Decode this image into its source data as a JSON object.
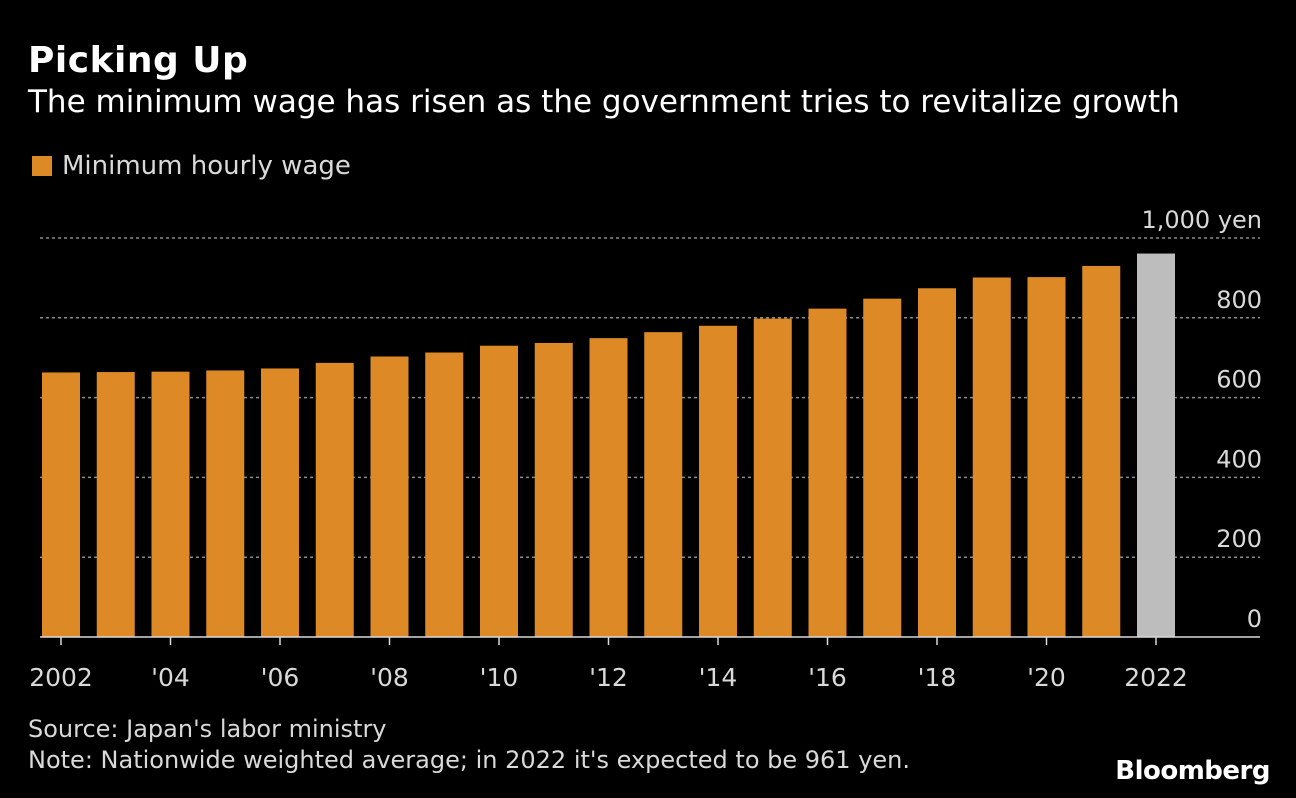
{
  "title": "Picking Up",
  "subtitle": "The minimum wage has risen as the government tries to revitalize growth",
  "legend": {
    "label": "Minimum hourly wage",
    "color": "#DD8A26"
  },
  "colors": {
    "bar": "#DD8A26",
    "bar_projected": "#BDBDBD",
    "grid": "#8C8C8C",
    "axis": "#D9D9D9"
  },
  "footer": {
    "source": "Source: Japan's labor ministry",
    "note": "Note: Nationwide weighted average; in 2022 it's expected to be 961 yen."
  },
  "brand": "Bloomberg",
  "chart_data": {
    "type": "bar",
    "title": "Picking Up",
    "subtitle": "The minimum wage has risen as the government tries to revitalize growth",
    "categories": [
      "2002",
      "2003",
      "2004",
      "2005",
      "2006",
      "2007",
      "2008",
      "2009",
      "2010",
      "2011",
      "2012",
      "2013",
      "2014",
      "2015",
      "2016",
      "2017",
      "2018",
      "2019",
      "2020",
      "2021",
      "2022"
    ],
    "x_tick_labels": [
      "2002",
      "'04",
      "'06",
      "'08",
      "'10",
      "'12",
      "'14",
      "'16",
      "'18",
      "'20",
      "2022"
    ],
    "series": [
      {
        "name": "Minimum hourly wage",
        "values": [
          663,
          664,
          665,
          668,
          673,
          687,
          703,
          713,
          730,
          737,
          749,
          764,
          780,
          798,
          823,
          848,
          874,
          901,
          902,
          930,
          961
        ]
      }
    ],
    "projected_categories": [
      "2022"
    ],
    "y_ticks": [
      0,
      200,
      400,
      600,
      800,
      1000
    ],
    "y_tick_labels": [
      "0",
      "200",
      "400",
      "600",
      "800",
      "1,000 yen"
    ],
    "ylim": [
      0,
      1000
    ],
    "grid": true,
    "y_axis_side": "right",
    "legend_position": "top-left"
  }
}
